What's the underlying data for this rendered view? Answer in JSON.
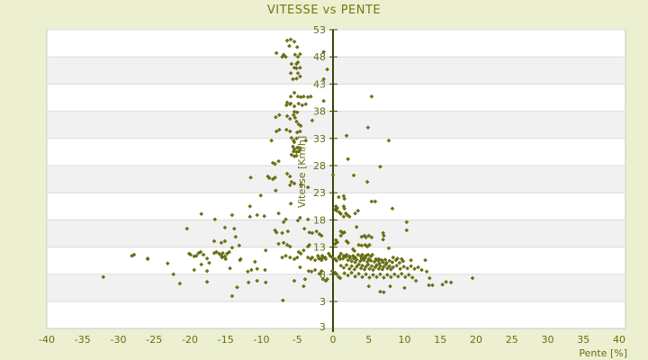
{
  "page": {
    "background": "#ecf0d1"
  },
  "chart_data": {
    "type": "scatter",
    "title": "VITESSE vs PENTE",
    "xlabel": "Pente [%]",
    "ylabel": "Vitesse [Km/h]",
    "x_ticks": [
      -40,
      -35,
      -30,
      -25,
      -20,
      -15,
      -10,
      -5,
      0,
      5,
      10,
      15,
      20,
      25,
      30,
      35,
      40
    ],
    "y_ticks": [
      3,
      8,
      13,
      18,
      23,
      28,
      33,
      38,
      43,
      48,
      53
    ],
    "y_axis_bottom_label": "3",
    "xlim": [
      -40,
      41
    ],
    "ylim": [
      -2,
      53
    ],
    "legend": "none",
    "grid": "horizontal bands alternating white/gray at each y tick step of 5",
    "marker": "diamond",
    "colors": {
      "point": "#71760b",
      "point_stroke": "#4a5005",
      "axis_line": "#3c4500",
      "band_gray": "#f1f1f1",
      "band_white": "#ffffff",
      "grid_line": "#dcdcdc",
      "plot_border": "#c8c8c8",
      "text": "#666f12",
      "title": "#6f7b0e",
      "background": "#ecf0d1"
    },
    "points": [
      [
        -6.4,
        51.0
      ],
      [
        -5.9,
        51.2
      ],
      [
        -5.4,
        50.8
      ],
      [
        -6.1,
        50.0
      ],
      [
        -5.0,
        49.8
      ],
      [
        -7.9,
        48.7
      ],
      [
        -6.9,
        48.4
      ],
      [
        -6.6,
        48.0
      ],
      [
        -7.1,
        48.0
      ],
      [
        -5.3,
        48.4
      ],
      [
        -4.9,
        48.0
      ],
      [
        -4.6,
        48.5
      ],
      [
        -5.8,
        46.7
      ],
      [
        -5.1,
        46.7
      ],
      [
        -4.9,
        47.0
      ],
      [
        -5.4,
        46.0
      ],
      [
        -5.1,
        45.9
      ],
      [
        -4.6,
        46.0
      ],
      [
        -0.8,
        45.7
      ],
      [
        -5.9,
        45.0
      ],
      [
        -4.9,
        45.0
      ],
      [
        -5.6,
        43.9
      ],
      [
        -5.1,
        44.0
      ],
      [
        -4.6,
        44.4
      ],
      [
        -5.4,
        41.4
      ],
      [
        -5.9,
        40.7
      ],
      [
        -4.9,
        40.7
      ],
      [
        -4.5,
        40.6
      ],
      [
        -4.1,
        40.7
      ],
      [
        -3.5,
        40.6
      ],
      [
        -3.1,
        40.7
      ],
      [
        -6.4,
        39.6
      ],
      [
        -5.9,
        39.4
      ],
      [
        -1.3,
        48.9
      ],
      [
        -1.3,
        43.9
      ],
      [
        -1.3,
        39.9
      ],
      [
        5.4,
        40.7
      ],
      [
        -6.5,
        39.1
      ],
      [
        -6.0,
        39.3
      ],
      [
        -5.4,
        38.9
      ],
      [
        -4.8,
        39.4
      ],
      [
        -4.3,
        39.1
      ],
      [
        -3.8,
        39.3
      ],
      [
        -8.0,
        36.9
      ],
      [
        -7.5,
        37.3
      ],
      [
        -6.4,
        37.1
      ],
      [
        -6.0,
        36.6
      ],
      [
        -5.5,
        37.3
      ],
      [
        -5.3,
        36.8
      ],
      [
        -5.0,
        37.8
      ],
      [
        -5.1,
        36.1
      ],
      [
        -5.4,
        37.9
      ],
      [
        -4.8,
        35.6
      ],
      [
        -4.5,
        35.3
      ],
      [
        -2.9,
        36.3
      ],
      [
        -7.9,
        34.3
      ],
      [
        -7.5,
        34.6
      ],
      [
        -6.5,
        34.6
      ],
      [
        -6.0,
        34.3
      ],
      [
        -5.0,
        34.1
      ],
      [
        -4.6,
        34.3
      ],
      [
        -8.6,
        32.6
      ],
      [
        -5.8,
        33.1
      ],
      [
        -5.5,
        32.6
      ],
      [
        -5.4,
        32.3
      ],
      [
        -5.1,
        33.0
      ],
      [
        -3.8,
        32.6
      ],
      [
        -5.6,
        31.5
      ],
      [
        -5.4,
        31.0
      ],
      [
        -5.0,
        31.3
      ],
      [
        -5.5,
        30.6
      ],
      [
        -5.1,
        30.5
      ],
      [
        -4.8,
        30.6
      ],
      [
        -4.6,
        31.1
      ],
      [
        -5.8,
        30.0
      ],
      [
        -5.4,
        29.7
      ],
      [
        -5.1,
        29.8
      ],
      [
        -8.4,
        28.5
      ],
      [
        -8.1,
        28.3
      ],
      [
        -7.6,
        28.8
      ],
      [
        -6.4,
        26.5
      ],
      [
        -6.0,
        26.0
      ],
      [
        -11.5,
        25.8
      ],
      [
        -9.1,
        26.0
      ],
      [
        -8.9,
        25.7
      ],
      [
        -8.4,
        25.5
      ],
      [
        -8.1,
        25.8
      ],
      [
        -5.8,
        25.0
      ],
      [
        -5.4,
        24.7
      ],
      [
        4.9,
        35.0
      ],
      [
        1.9,
        33.5
      ],
      [
        7.8,
        32.6
      ],
      [
        2.1,
        29.2
      ],
      [
        6.6,
        27.8
      ],
      [
        2.9,
        26.2
      ],
      [
        0.0,
        26.3
      ],
      [
        4.8,
        25.0
      ],
      [
        -18.4,
        19.1
      ],
      [
        -16.5,
        18.1
      ],
      [
        -14.1,
        18.9
      ],
      [
        -20.4,
        16.4
      ],
      [
        -15.1,
        16.6
      ],
      [
        -13.8,
        16.4
      ],
      [
        -13.6,
        14.9
      ],
      [
        -16.6,
        14.1
      ],
      [
        -15.6,
        13.8
      ],
      [
        -15.1,
        14.1
      ],
      [
        -14.1,
        12.9
      ],
      [
        -13.1,
        13.3
      ],
      [
        -20.1,
        11.8
      ],
      [
        -19.1,
        11.4
      ],
      [
        -18.5,
        12.1
      ],
      [
        -16.6,
        11.9
      ],
      [
        -16.3,
        12.1
      ],
      [
        -15.9,
        11.8
      ],
      [
        -15.6,
        11.4
      ],
      [
        -15.4,
        11.9
      ],
      [
        -15.1,
        11.3
      ],
      [
        -14.8,
        11.8
      ],
      [
        -14.5,
        12.1
      ],
      [
        -25.9,
        10.9
      ],
      [
        -12.9,
        10.8
      ],
      [
        -6.0,
        24.4
      ],
      [
        -4.5,
        24.5
      ],
      [
        -3.5,
        24.0
      ],
      [
        -8.0,
        23.4
      ],
      [
        -10.1,
        22.5
      ],
      [
        -5.9,
        21.0
      ],
      [
        -11.6,
        20.5
      ],
      [
        -7.6,
        19.2
      ],
      [
        -11.6,
        18.6
      ],
      [
        -10.6,
        18.9
      ],
      [
        -9.6,
        18.7
      ],
      [
        -6.9,
        17.6
      ],
      [
        -6.6,
        18.1
      ],
      [
        -4.6,
        18.4
      ],
      [
        -4.9,
        17.9
      ],
      [
        -3.5,
        18.1
      ],
      [
        -8.1,
        16.1
      ],
      [
        -7.9,
        15.7
      ],
      [
        -7.1,
        15.6
      ],
      [
        -6.3,
        15.9
      ],
      [
        -4.0,
        16.4
      ],
      [
        -3.3,
        15.7
      ],
      [
        -2.9,
        15.6
      ],
      [
        -2.3,
        15.9
      ],
      [
        -1.9,
        15.4
      ],
      [
        -1.6,
        15.1
      ],
      [
        -7.6,
        13.6
      ],
      [
        -6.9,
        13.8
      ],
      [
        -9.4,
        12.4
      ],
      [
        -6.4,
        13.4
      ],
      [
        -6.0,
        13.1
      ],
      [
        -4.8,
        12.1
      ],
      [
        -4.5,
        11.8
      ],
      [
        -4.1,
        12.4
      ],
      [
        -3.5,
        13.1
      ],
      [
        -3.3,
        13.4
      ],
      [
        -6.6,
        11.4
      ],
      [
        -6.0,
        11.1
      ],
      [
        -2.1,
        11.4
      ],
      [
        -1.8,
        10.9
      ],
      [
        -1.5,
        11.4
      ],
      [
        -1.1,
        11.1
      ],
      [
        -0.6,
        11.8
      ],
      [
        -0.4,
        11.4
      ],
      [
        0.8,
        22.2
      ],
      [
        1.5,
        22.4
      ],
      [
        1.6,
        21.9
      ],
      [
        5.4,
        21.4
      ],
      [
        5.9,
        21.4
      ],
      [
        0.4,
        20.5
      ],
      [
        0.6,
        20.2
      ],
      [
        0.3,
        19.9
      ],
      [
        0.5,
        19.7
      ],
      [
        0.9,
        19.4
      ],
      [
        1.5,
        20.5
      ],
      [
        1.6,
        20.1
      ],
      [
        1.8,
        19.2
      ],
      [
        2.0,
        18.9
      ],
      [
        2.3,
        18.6
      ],
      [
        1.5,
        18.6
      ],
      [
        1.1,
        19.1
      ],
      [
        8.3,
        20.1
      ],
      [
        3.1,
        19.2
      ],
      [
        3.5,
        19.7
      ],
      [
        10.3,
        17.6
      ],
      [
        10.3,
        16.1
      ],
      [
        3.3,
        16.7
      ],
      [
        1.1,
        15.9
      ],
      [
        1.4,
        15.6
      ],
      [
        1.1,
        15.1
      ],
      [
        1.6,
        15.7
      ],
      [
        4.0,
        14.9
      ],
      [
        4.4,
        15.1
      ],
      [
        4.6,
        14.8
      ],
      [
        5.0,
        15.1
      ],
      [
        5.4,
        14.8
      ],
      [
        7.0,
        15.6
      ],
      [
        7.1,
        15.1
      ],
      [
        7.0,
        14.4
      ],
      [
        0.4,
        14.3
      ],
      [
        0.6,
        13.9
      ],
      [
        0.3,
        13.6
      ],
      [
        1.9,
        14.1
      ],
      [
        2.1,
        13.8
      ],
      [
        3.6,
        13.4
      ],
      [
        4.0,
        13.3
      ],
      [
        4.5,
        13.4
      ],
      [
        4.8,
        13.1
      ],
      [
        5.1,
        13.4
      ],
      [
        7.8,
        12.8
      ],
      [
        2.8,
        12.6
      ],
      [
        3.0,
        12.3
      ],
      [
        6.4,
        10.8
      ],
      [
        6.8,
        10.6
      ],
      [
        8.4,
        11.1
      ],
      [
        9.0,
        10.9
      ],
      [
        9.6,
        10.8
      ],
      [
        10.9,
        10.6
      ],
      [
        1.1,
        11.8
      ],
      [
        1.5,
        11.4
      ],
      [
        0.9,
        11.3
      ],
      [
        1.9,
        11.6
      ],
      [
        2.3,
        11.3
      ],
      [
        2.8,
        11.4
      ],
      [
        3.1,
        11.1
      ],
      [
        3.5,
        11.6
      ],
      [
        3.9,
        11.3
      ],
      [
        4.1,
        11.6
      ],
      [
        4.4,
        11.1
      ],
      [
        4.6,
        11.4
      ],
      [
        4.9,
        11.6
      ],
      [
        5.3,
        11.3
      ],
      [
        5.5,
        11.6
      ],
      [
        -28.1,
        11.4
      ],
      [
        -27.8,
        11.6
      ],
      [
        -25.9,
        10.8
      ],
      [
        -23.1,
        10.0
      ],
      [
        -19.9,
        11.6
      ],
      [
        -19.4,
        11.3
      ],
      [
        -18.8,
        11.9
      ],
      [
        -18.1,
        11.6
      ],
      [
        -17.6,
        10.9
      ],
      [
        -19.4,
        8.8
      ],
      [
        -18.4,
        9.8
      ],
      [
        -17.6,
        8.6
      ],
      [
        -17.3,
        10.1
      ],
      [
        -32.1,
        7.5
      ],
      [
        -22.3,
        8.0
      ],
      [
        -21.4,
        6.3
      ],
      [
        -17.6,
        6.6
      ],
      [
        -15.5,
        11.1
      ],
      [
        -15.0,
        10.8
      ],
      [
        -13.0,
        10.6
      ],
      [
        -14.4,
        9.1
      ],
      [
        -11.9,
        8.5
      ],
      [
        -11.4,
        8.8
      ],
      [
        -10.9,
        10.3
      ],
      [
        -10.6,
        9.0
      ],
      [
        -9.5,
        8.8
      ],
      [
        -11.8,
        6.5
      ],
      [
        -10.6,
        6.8
      ],
      [
        -9.4,
        6.5
      ],
      [
        -13.4,
        5.6
      ],
      [
        -14.1,
        4.0
      ],
      [
        -7.0,
        3.2
      ],
      [
        -7.1,
        11.1
      ],
      [
        -5.4,
        10.8
      ],
      [
        -5.0,
        11.1
      ],
      [
        -4.6,
        9.3
      ],
      [
        -5.4,
        6.8
      ],
      [
        -4.1,
        5.8
      ],
      [
        -3.9,
        7.1
      ],
      [
        -3.5,
        11.1
      ],
      [
        -3.1,
        10.8
      ],
      [
        -2.9,
        11.1
      ],
      [
        -2.5,
        10.6
      ],
      [
        -2.0,
        10.9
      ],
      [
        -1.6,
        10.6
      ],
      [
        -1.4,
        11.1
      ],
      [
        -1.0,
        10.8
      ],
      [
        -3.4,
        8.6
      ],
      [
        -3.0,
        8.5
      ],
      [
        -2.5,
        8.8
      ],
      [
        -1.9,
        8.1
      ],
      [
        -1.6,
        8.6
      ],
      [
        -1.4,
        7.1
      ],
      [
        -1.0,
        6.8
      ],
      [
        -0.8,
        7.1
      ],
      [
        -0.1,
        11.1
      ],
      [
        0.3,
        10.8
      ],
      [
        0.5,
        10.5
      ],
      [
        0.8,
        11.1
      ],
      [
        1.0,
        10.8
      ],
      [
        -0.1,
        8.6
      ],
      [
        0.3,
        8.3
      ],
      [
        0.5,
        8.0
      ],
      [
        0.8,
        7.5
      ],
      [
        1.0,
        7.3
      ],
      [
        1.4,
        10.9
      ],
      [
        1.8,
        11.2
      ],
      [
        2.1,
        10.6
      ],
      [
        2.4,
        11.0
      ],
      [
        2.6,
        10.4
      ],
      [
        2.9,
        10.9
      ],
      [
        3.1,
        10.2
      ],
      [
        3.3,
        10.7
      ],
      [
        3.8,
        10.4
      ],
      [
        4.0,
        10.9
      ],
      [
        4.3,
        10.6
      ],
      [
        4.5,
        11.0
      ],
      [
        4.8,
        10.3
      ],
      [
        5.0,
        10.8
      ],
      [
        5.3,
        10.5
      ],
      [
        5.8,
        10.3
      ],
      [
        6.0,
        10.8
      ],
      [
        6.3,
        10.5
      ],
      [
        6.5,
        10.0
      ],
      [
        6.8,
        10.6
      ],
      [
        7.0,
        10.2
      ],
      [
        7.3,
        10.7
      ],
      [
        7.5,
        10.1
      ],
      [
        7.9,
        10.5
      ],
      [
        8.3,
        10.2
      ],
      [
        8.8,
        10.6
      ],
      [
        9.3,
        10.1
      ],
      [
        9.8,
        10.4
      ],
      [
        1.1,
        9.6
      ],
      [
        1.5,
        9.2
      ],
      [
        1.9,
        9.7
      ],
      [
        2.3,
        9.0
      ],
      [
        2.6,
        9.5
      ],
      [
        3.0,
        8.9
      ],
      [
        3.3,
        9.4
      ],
      [
        3.6,
        9.8
      ],
      [
        3.9,
        9.1
      ],
      [
        4.1,
        9.6
      ],
      [
        4.4,
        8.9
      ],
      [
        4.6,
        9.4
      ],
      [
        4.9,
        9.8
      ],
      [
        5.1,
        9.0
      ],
      [
        5.4,
        9.5
      ],
      [
        5.6,
        8.8
      ],
      [
        5.9,
        9.3
      ],
      [
        6.1,
        9.7
      ],
      [
        6.4,
        9.0
      ],
      [
        6.6,
        9.5
      ],
      [
        6.9,
        8.9
      ],
      [
        7.1,
        9.4
      ],
      [
        7.4,
        9.8
      ],
      [
        7.6,
        9.1
      ],
      [
        7.9,
        9.5
      ],
      [
        8.1,
        8.9
      ],
      [
        8.4,
        9.3
      ],
      [
        8.9,
        9.6
      ],
      [
        9.4,
        9.0
      ],
      [
        9.9,
        9.4
      ],
      [
        10.4,
        9.1
      ],
      [
        10.9,
        9.5
      ],
      [
        11.4,
        9.0
      ],
      [
        11.9,
        9.3
      ],
      [
        1.6,
        8.2
      ],
      [
        2.1,
        7.8
      ],
      [
        2.6,
        8.3
      ],
      [
        3.1,
        7.6
      ],
      [
        3.6,
        8.1
      ],
      [
        4.1,
        7.5
      ],
      [
        4.6,
        8.0
      ],
      [
        5.1,
        7.4
      ],
      [
        5.6,
        7.9
      ],
      [
        6.1,
        7.5
      ],
      [
        6.6,
        8.0
      ],
      [
        7.1,
        7.4
      ],
      [
        7.6,
        7.9
      ],
      [
        8.1,
        7.5
      ],
      [
        8.6,
        8.0
      ],
      [
        9.1,
        7.6
      ],
      [
        9.6,
        8.1
      ],
      [
        10.1,
        7.5
      ],
      [
        10.6,
        7.9
      ],
      [
        11.1,
        7.4
      ],
      [
        12.9,
        10.6
      ],
      [
        12.4,
        8.8
      ],
      [
        13.1,
        8.5
      ],
      [
        13.5,
        7.3
      ],
      [
        13.9,
        6.0
      ],
      [
        15.3,
        6.1
      ],
      [
        15.8,
        6.6
      ],
      [
        16.5,
        6.5
      ],
      [
        19.5,
        7.3
      ],
      [
        5.0,
        5.8
      ],
      [
        6.6,
        4.8
      ],
      [
        7.1,
        4.7
      ],
      [
        8.0,
        5.8
      ],
      [
        10.0,
        5.5
      ],
      [
        11.6,
        6.8
      ],
      [
        13.4,
        6.0
      ]
    ]
  }
}
